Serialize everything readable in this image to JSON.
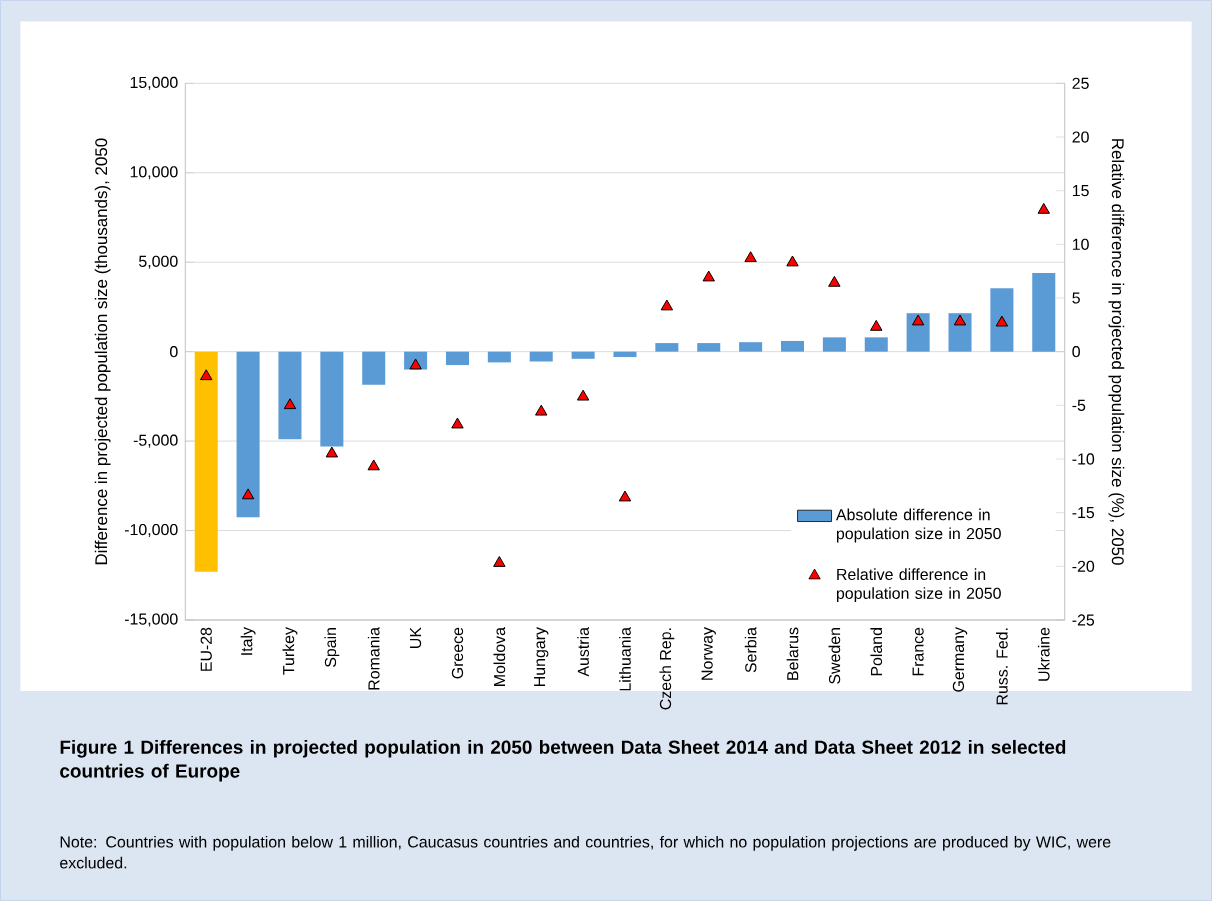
{
  "chart_data": {
    "type": "bar",
    "title": "**Figure 1 Differences in projected population  in 2050 between Data Sheet 2014 and Data Sheet 2012 in selected countries of Europe**",
    "annotations": [
      "Note: Countries with population below 1 million, Caucasus countries and countries, for which no population projections are produced by WIC, were excluded."
    ],
    "ylabel": "Difference in projected population size (thousands), 2050",
    "y2label": "Relative  difference in projected population size (%), 2050",
    "categories": [
      "EU-28",
      "Italy",
      "Turkey",
      "Spain",
      "Romania",
      "UK",
      "Greece",
      "Moldova",
      "Hungary",
      "Austria",
      "Lithuania",
      "Czech Rep.",
      "Norway",
      "Serbia",
      "Belarus",
      "Sweden",
      "Poland",
      "France",
      "Germany",
      "Russ. Fed.",
      "Ukraine"
    ],
    "series": [
      {
        "name": "Absolute difference in population size in 2050",
        "color": "#5b9bd5",
        "colors": [
          "#ffc000",
          "#5b9bd5",
          "#5b9bd5",
          "#5b9bd5",
          "#5b9bd5",
          "#5b9bd5",
          "#5b9bd5",
          "#5b9bd5",
          "#5b9bd5",
          "#5b9bd5",
          "#5b9bd5",
          "#5b9bd5",
          "#5b9bd5",
          "#5b9bd5",
          "#5b9bd5",
          "#5b9bd5",
          "#5b9bd5",
          "#5b9bd5",
          "#5b9bd5",
          "#5b9bd5",
          "#5b9bd5"
        ],
        "values": [
          -12300,
          -9250,
          -4900,
          -5300,
          -1850,
          -1000,
          -750,
          -600,
          -550,
          -400,
          -300,
          480,
          480,
          530,
          600,
          800,
          800,
          2150,
          2150,
          3550,
          4400
        ]
      },
      {
        "name": "Relative difference in population size in 2050",
        "type": "scatter",
        "axis": "y2",
        "color": "#ff0000",
        "marker": "triangle",
        "values": [
          -2.3,
          -13.4,
          -5.0,
          -9.5,
          -10.7,
          -1.3,
          -6.8,
          -19.7,
          -5.6,
          -4.2,
          -13.6,
          4.2,
          6.9,
          8.7,
          8.3,
          6.4,
          2.3,
          2.8,
          2.8,
          2.7,
          13.2
        ]
      }
    ],
    "ylim": [
      -15000,
      15000
    ],
    "yticks": [
      {
        "value": -15000,
        "label": "-15,000"
      },
      {
        "value": -10000,
        "label": "-10,000"
      },
      {
        "value": -5000,
        "label": "-5,000"
      },
      0,
      {
        "value": 5000,
        "label": "5,000"
      },
      {
        "value": 10000,
        "label": "10,000"
      },
      {
        "value": 15000,
        "label": "15,000"
      }
    ],
    "y2lim": [
      -25,
      25
    ],
    "y2ticks": [
      -25,
      -20,
      -15,
      -10,
      -5,
      0,
      5,
      10,
      15,
      20,
      25
    ],
    "grid": "y",
    "legend": "bottom right"
  }
}
